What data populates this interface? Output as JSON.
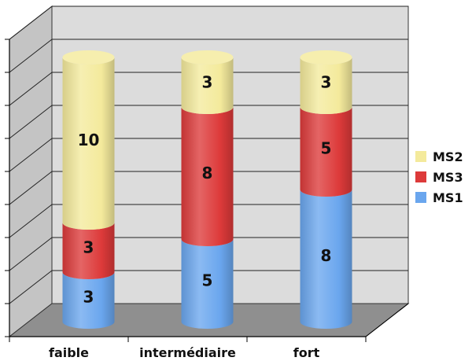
{
  "chart_data": {
    "type": "bar",
    "stacked": true,
    "style": "3d-cylinder",
    "categories": [
      "faible",
      "intermédiaire",
      "fort"
    ],
    "series": [
      {
        "name": "MS1",
        "values": [
          3,
          5,
          8
        ],
        "color": "#6aa6ee"
      },
      {
        "name": "MS3",
        "values": [
          3,
          8,
          5
        ],
        "color": "#dd3a3a"
      },
      {
        "name": "MS2",
        "values": [
          10,
          3,
          3
        ],
        "color": "#f4ea9c"
      }
    ],
    "legend": {
      "position": "right",
      "order": [
        "MS2",
        "MS3",
        "MS1"
      ]
    },
    "ylim": [
      0,
      18
    ],
    "grid": true,
    "title": "",
    "xlabel": "",
    "ylabel": ""
  }
}
